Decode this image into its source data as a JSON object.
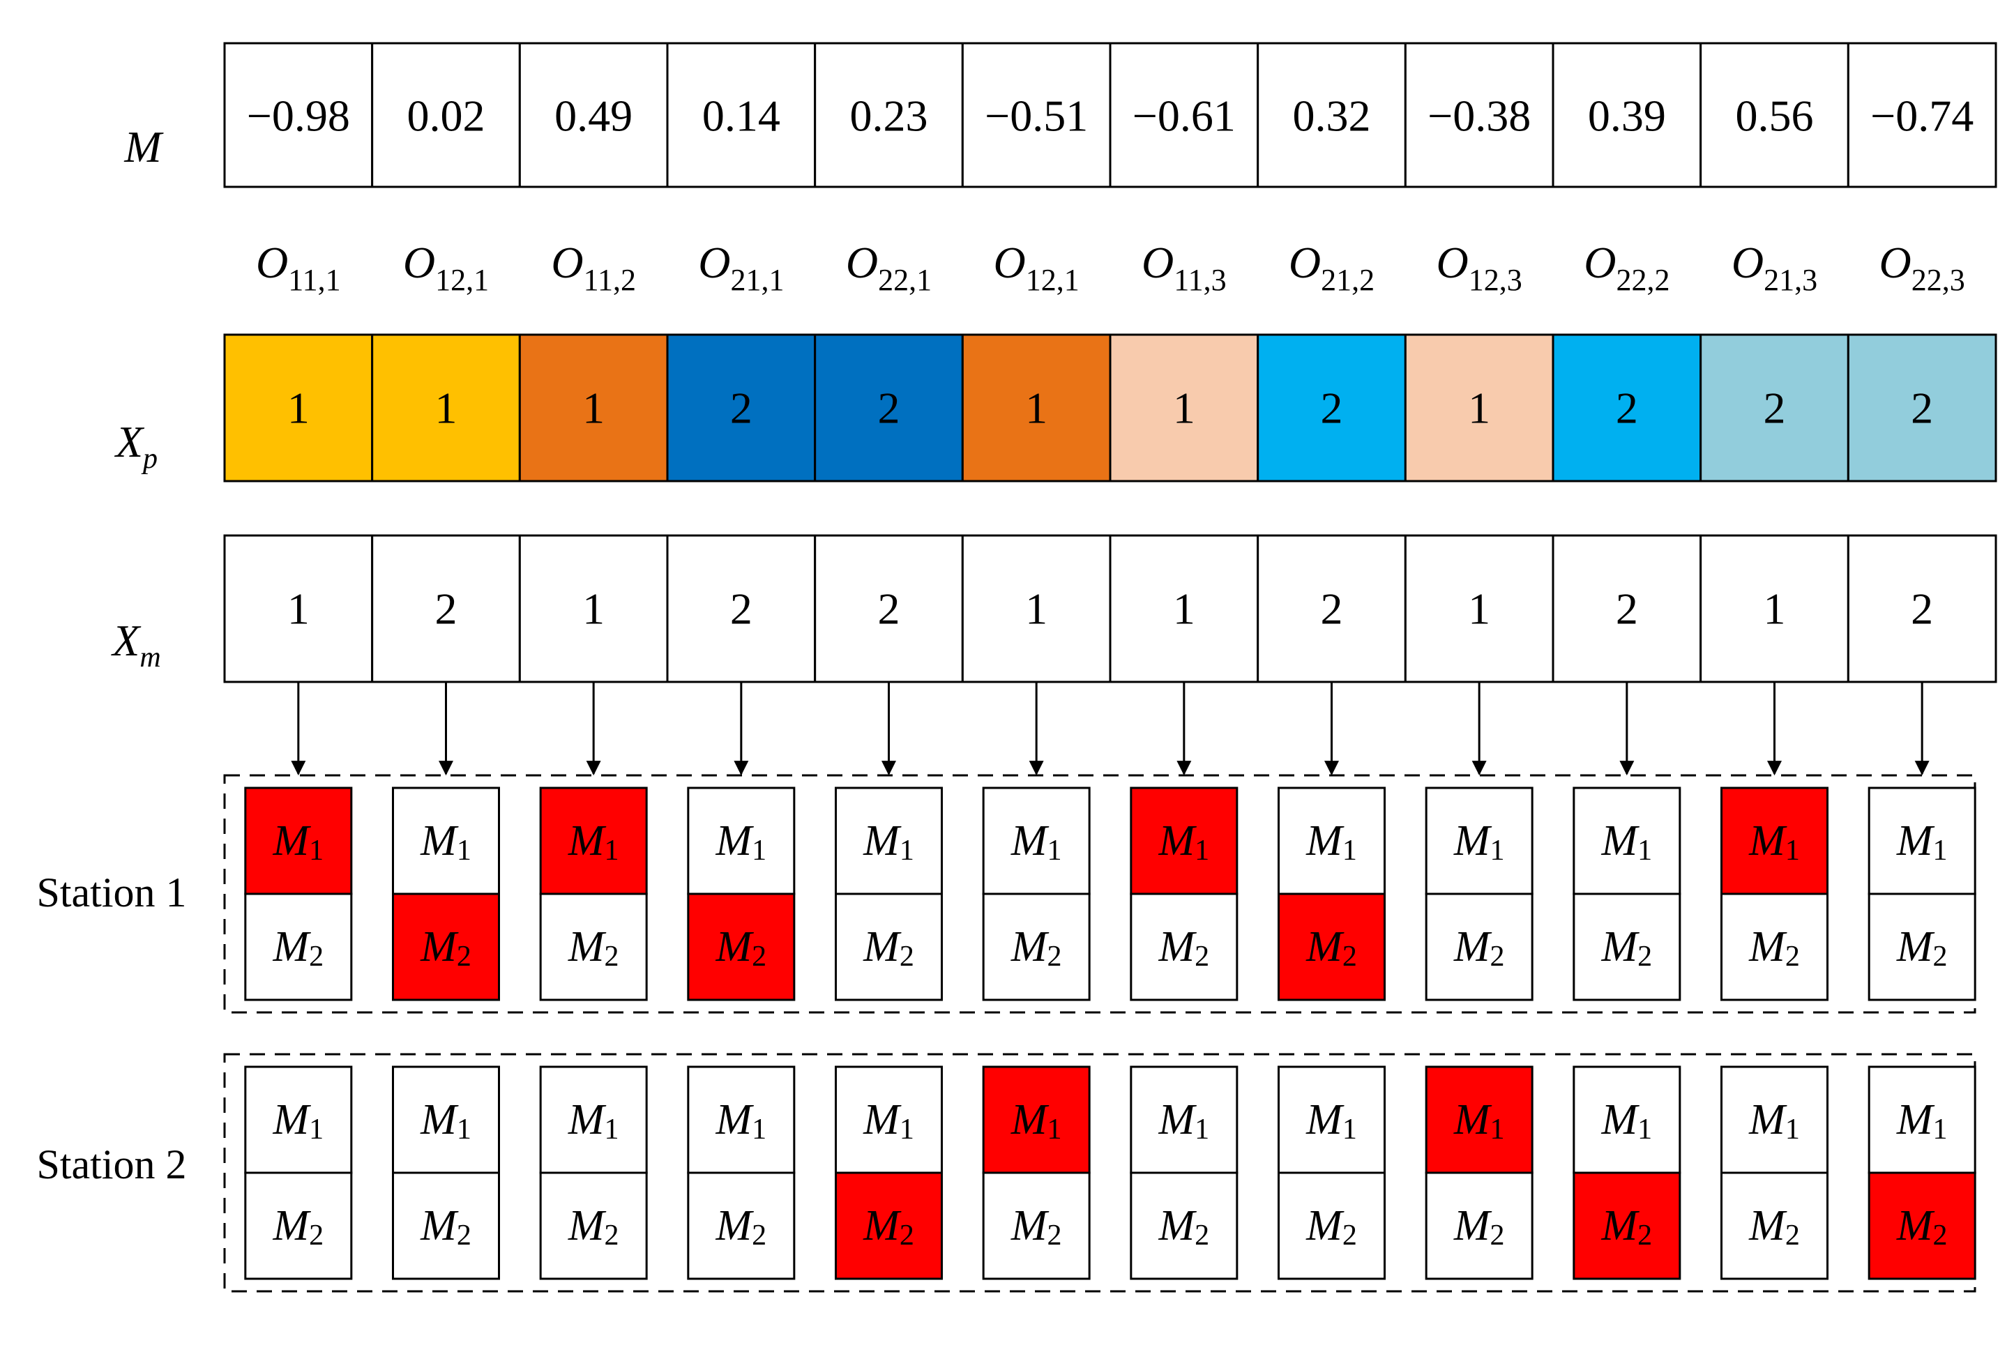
{
  "labels": {
    "row_m": "M",
    "row_xp_base": "X",
    "row_xp_sub": "p",
    "row_xm_base": "X",
    "row_xm_sub": "m",
    "station1": "Station 1",
    "station2": "Station 2",
    "machine_letter": "M",
    "machine1_sub": "1",
    "machine2_sub": "2",
    "op_letter": "O"
  },
  "m_values": [
    "−0.98",
    "0.02",
    "0.49",
    "0.14",
    "0.23",
    "−0.51",
    "−0.61",
    "0.32",
    "−0.38",
    "0.39",
    "0.56",
    "−0.74"
  ],
  "operations": [
    "11,1",
    "12,1",
    "11,2",
    "21,1",
    "22,1",
    "12,1",
    "11,3",
    "21,2",
    "12,3",
    "22,2",
    "21,3",
    "22,3"
  ],
  "xp_values": [
    "1",
    "1",
    "1",
    "2",
    "2",
    "1",
    "1",
    "2",
    "1",
    "2",
    "2",
    "2"
  ],
  "xp_colors": [
    "#FFC000",
    "#FFC000",
    "#E97316",
    "#0070C0",
    "#0070C0",
    "#E97316",
    "#F8CBAD",
    "#00B0F0",
    "#F8CBAD",
    "#00B0F0",
    "#92CDDC",
    "#92CDDC"
  ],
  "xm_values": [
    "1",
    "2",
    "1",
    "2",
    "2",
    "1",
    "1",
    "2",
    "1",
    "2",
    "1",
    "2"
  ],
  "station_assignment": [
    1,
    1,
    1,
    1,
    2,
    2,
    1,
    1,
    2,
    2,
    1,
    2
  ],
  "highlight_color": "#FF0000"
}
